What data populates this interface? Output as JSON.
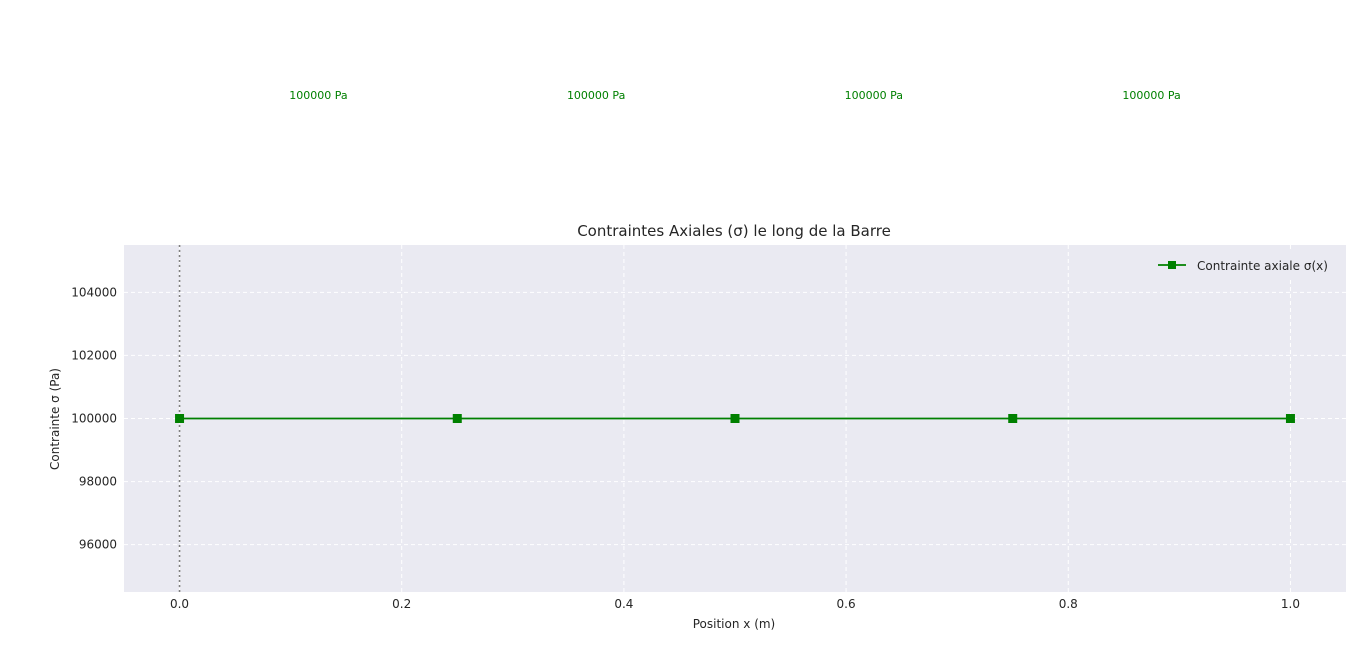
{
  "chart_data": {
    "type": "line",
    "title": "Contraintes Axiales (σ) le long de la Barre",
    "xlabel": "Position x (m)",
    "ylabel": "Contrainte σ (Pa)",
    "xlim": [
      -0.05,
      1.05
    ],
    "ylim": [
      94500,
      105500
    ],
    "x_ticks": [
      0.0,
      0.2,
      0.4,
      0.6,
      0.8,
      1.0
    ],
    "x_tick_labels": [
      "0.0",
      "0.2",
      "0.4",
      "0.6",
      "0.8",
      "1.0"
    ],
    "y_ticks": [
      96000,
      98000,
      100000,
      102000,
      104000
    ],
    "y_tick_labels": [
      "96000",
      "98000",
      "100000",
      "102000",
      "104000"
    ],
    "grid": true,
    "legend_position": "top-right",
    "vertical_reference_line_x": 0.0,
    "series": [
      {
        "name": "Contrainte axiale σ(x)",
        "color": "#008000",
        "marker": "square",
        "x": [
          0.0,
          0.25,
          0.5,
          0.75,
          1.0
        ],
        "values": [
          100000,
          100000,
          100000,
          100000,
          100000
        ]
      }
    ],
    "annotations": [
      {
        "text": "100000 Pa",
        "x": 0.125
      },
      {
        "text": "100000 Pa",
        "x": 0.375
      },
      {
        "text": "100000 Pa",
        "x": 0.625
      },
      {
        "text": "100000 Pa",
        "x": 0.875
      }
    ],
    "colors": {
      "plot_background": "#eaeaf2",
      "grid": "#ffffff",
      "annotation": "#008000",
      "reference_line": "#808080"
    }
  }
}
